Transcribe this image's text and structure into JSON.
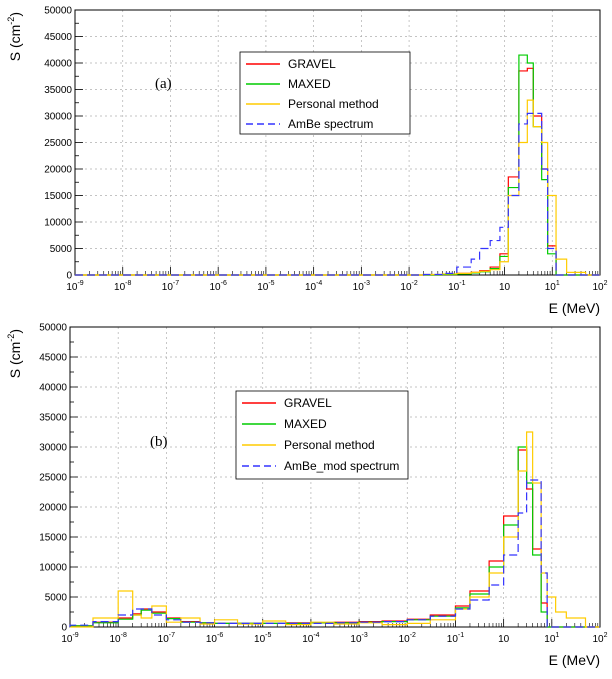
{
  "chart_data": [
    {
      "type": "line",
      "panel_label": "(a)",
      "xlabel": "E (MeV)",
      "ylabel": "S (cm",
      "ylabel_sup": "-2",
      "ylabel_close": ")",
      "xscale": "log",
      "xlim": [
        1e-09,
        100
      ],
      "ylim": [
        0,
        50000
      ],
      "x_ticks": [
        "10",
        "10",
        "10",
        "10",
        "10",
        "10",
        "10",
        "10",
        "10",
        "10",
        "10",
        "10"
      ],
      "x_tick_exps": [
        "-9",
        "-8",
        "-7",
        "-6",
        "-5",
        "-4",
        "-3",
        "-2",
        "-1",
        "",
        "1",
        "2"
      ],
      "y_ticks": [
        "0",
        "5000",
        "10000",
        "15000",
        "20000",
        "25000",
        "30000",
        "35000",
        "40000",
        "45000",
        "50000"
      ],
      "grid": true,
      "legend_position": "top-center",
      "bin_edges": [
        1e-09,
        1e-08,
        1e-07,
        1e-06,
        1e-05,
        0.0001,
        0.001,
        0.01,
        0.02,
        0.05,
        0.1,
        0.2,
        0.3,
        0.5,
        0.8,
        1.2,
        2,
        3,
        4,
        6,
        8,
        12,
        20,
        50,
        100
      ],
      "series": [
        {
          "name": "GRAVEL",
          "color": "#ff0000",
          "dash": "",
          "values": [
            0,
            0,
            0,
            0,
            0,
            0,
            0,
            0,
            0,
            100,
            300,
            500,
            800,
            1500,
            4000,
            18500,
            38500,
            39000,
            30000,
            20000,
            5500,
            0,
            0,
            0
          ]
        },
        {
          "name": "MAXED",
          "color": "#00cc00",
          "dash": "",
          "values": [
            0,
            0,
            0,
            0,
            0,
            0,
            0,
            0,
            0,
            100,
            200,
            400,
            600,
            1200,
            3500,
            16500,
            41500,
            40000,
            28000,
            18000,
            4000,
            0,
            0,
            0
          ]
        },
        {
          "name": "Personal method",
          "color": "#ffcc00",
          "dash": "",
          "values": [
            0,
            0,
            0,
            0,
            0,
            0,
            0,
            0,
            100,
            200,
            300,
            500,
            700,
            1000,
            2500,
            15000,
            25000,
            33000,
            28000,
            25000,
            15000,
            3000,
            500,
            0
          ]
        },
        {
          "name": "AmBe spectrum",
          "color": "#3333ff",
          "dash": "8,4",
          "values": [
            0,
            0,
            0,
            0,
            0,
            0,
            0,
            0,
            100,
            300,
            1500,
            3000,
            5000,
            6500,
            9000,
            15000,
            28500,
            30500,
            30500,
            20000,
            5000,
            0,
            0,
            0
          ]
        }
      ]
    },
    {
      "type": "line",
      "panel_label": "(b)",
      "xlabel": "E (MeV)",
      "ylabel": "S (cm",
      "ylabel_sup": "-2",
      "ylabel_close": ")",
      "xscale": "log",
      "xlim": [
        1e-09,
        100
      ],
      "ylim": [
        0,
        50000
      ],
      "x_ticks": [
        "10",
        "10",
        "10",
        "10",
        "10",
        "10",
        "10",
        "10",
        "10",
        "10",
        "10",
        "10"
      ],
      "x_tick_exps": [
        "-9",
        "-8",
        "-7",
        "-6",
        "-5",
        "-4",
        "-3",
        "-2",
        "-1",
        "",
        "1",
        "2"
      ],
      "y_ticks": [
        "0",
        "5000",
        "10000",
        "15000",
        "20000",
        "25000",
        "30000",
        "35000",
        "40000",
        "45000",
        "50000"
      ],
      "grid": true,
      "legend_position": "top-center",
      "bin_edges": [
        1e-09,
        3e-09,
        1e-08,
        2e-08,
        3e-08,
        5e-08,
        1e-07,
        2e-07,
        5e-07,
        1e-06,
        3e-06,
        1e-05,
        3e-05,
        0.0001,
        0.0003,
        0.001,
        0.003,
        0.01,
        0.03,
        0.1,
        0.2,
        0.5,
        1,
        2,
        3,
        4,
        6,
        8,
        12,
        20,
        50,
        100
      ],
      "series": [
        {
          "name": "GRAVEL",
          "color": "#ff0000",
          "dash": "",
          "values": [
            200,
            800,
            1500,
            2200,
            3000,
            2500,
            1500,
            900,
            700,
            600,
            600,
            600,
            700,
            700,
            800,
            900,
            1000,
            1300,
            2000,
            3500,
            6000,
            11000,
            18500,
            29500,
            23000,
            13000,
            4000,
            0,
            0,
            0,
            0
          ]
        },
        {
          "name": "MAXED",
          "color": "#00cc00",
          "dash": "",
          "values": [
            200,
            700,
            1300,
            2000,
            2800,
            2300,
            1400,
            800,
            700,
            600,
            600,
            600,
            600,
            700,
            700,
            800,
            900,
            1200,
            1800,
            3200,
            5500,
            10000,
            17000,
            30000,
            24000,
            12000,
            2500,
            0,
            0,
            0,
            0
          ]
        },
        {
          "name": "Personal method",
          "color": "#ffcc00",
          "dash": "",
          "values": [
            0,
            1500,
            6000,
            2000,
            1500,
            3500,
            800,
            1500,
            500,
            1200,
            500,
            1000,
            400,
            800,
            500,
            700,
            400,
            600,
            1200,
            3000,
            5000,
            9000,
            15000,
            26000,
            32500,
            24000,
            9000,
            5000,
            2500,
            1500,
            0
          ]
        },
        {
          "name": "AmBe_mod spectrum",
          "color": "#3333ff",
          "dash": "8,4",
          "values": [
            300,
            900,
            2000,
            3000,
            3000,
            2000,
            1200,
            800,
            700,
            600,
            600,
            600,
            600,
            600,
            700,
            800,
            900,
            1200,
            1800,
            3000,
            4500,
            7000,
            12000,
            19000,
            24500,
            24500,
            9000,
            0,
            0,
            0,
            0
          ]
        }
      ]
    }
  ]
}
